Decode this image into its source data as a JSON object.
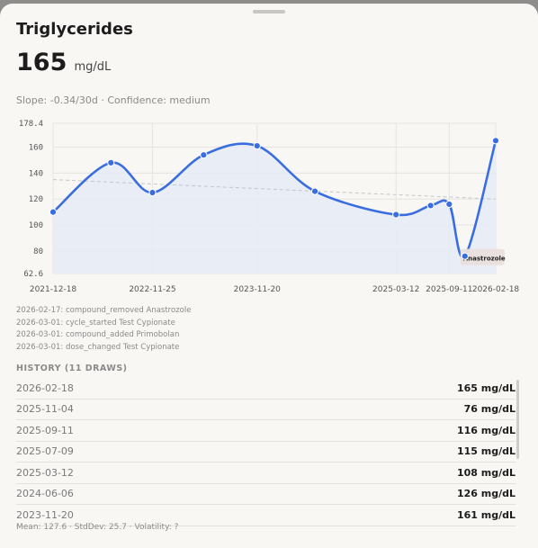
{
  "title": "Triglycerides",
  "current": {
    "value": "165",
    "unit": "mg/dL"
  },
  "slope_text": "Slope: -0.34/30d · Confidence: medium",
  "chart_data": {
    "type": "line",
    "x": [
      "2021-12-18",
      "2022-07-05",
      "2022-11-25",
      "2023-05-20",
      "2023-11-20",
      "2024-06-06",
      "2025-03-12",
      "2025-07-09",
      "2025-09-11",
      "2025-11-04",
      "2026-02-18"
    ],
    "values": [
      110,
      148,
      125,
      154,
      161,
      126,
      108,
      115,
      116,
      76,
      165
    ],
    "xticks": [
      "2021-12-18",
      "2022-11-25",
      "2023-11-20",
      "2025-03-12",
      "2025-09-11",
      "2026-02-18"
    ],
    "yticks": [
      "178.4",
      "160",
      "140",
      "120",
      "100",
      "80",
      "62.6"
    ],
    "ylim": [
      62.6,
      178.4
    ],
    "trend": [
      135,
      120
    ],
    "annotation": {
      "label": "Anastrozole",
      "index": 9
    },
    "line_color": "#3a6ee0",
    "fill_color": "#e6ebf6",
    "grid": true
  },
  "events": [
    "2026-02-17: compound_removed Anastrozole",
    "2026-03-01: cycle_started Test Cypionate",
    "2026-03-01: compound_added Primobolan",
    "2026-03-01: dose_changed Test Cypionate"
  ],
  "history": {
    "heading": "HISTORY (11 DRAWS)",
    "rows": [
      {
        "date": "2026-02-18",
        "value": "165 mg/dL"
      },
      {
        "date": "2025-11-04",
        "value": "76 mg/dL"
      },
      {
        "date": "2025-09-11",
        "value": "116 mg/dL"
      },
      {
        "date": "2025-07-09",
        "value": "115 mg/dL"
      },
      {
        "date": "2025-03-12",
        "value": "108 mg/dL"
      },
      {
        "date": "2024-06-06",
        "value": "126 mg/dL"
      },
      {
        "date": "2023-11-20",
        "value": "161 mg/dL"
      }
    ]
  },
  "footer": "Mean: 127.6 · StdDev: 25.7 · Volatility: ?"
}
